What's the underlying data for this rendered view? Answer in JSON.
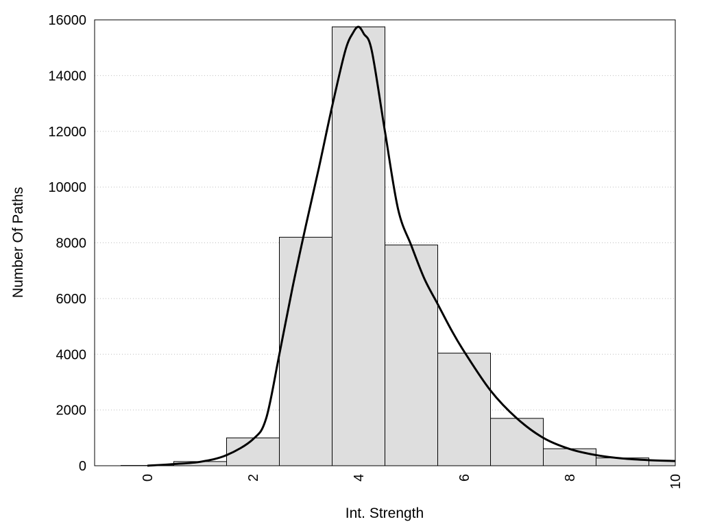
{
  "chart_data": {
    "type": "bar",
    "title": "",
    "xlabel": "Int. Strength",
    "ylabel": "Number Of Paths",
    "xlim": [
      -1,
      10
    ],
    "ylim": [
      0,
      16000
    ],
    "x_ticks": [
      "0",
      "2",
      "4",
      "6",
      "8",
      "10"
    ],
    "y_ticks": [
      "0",
      "2000",
      "4000",
      "6000",
      "8000",
      "10000",
      "12000",
      "14000",
      "16000"
    ],
    "grid": "horizontal dotted",
    "legend": "none",
    "bar_fill": "#dedede",
    "bar_edge": "#000000",
    "series": [
      {
        "type": "bar",
        "bin_width": 1,
        "x": [
          0,
          1,
          2,
          3,
          4,
          5,
          6,
          7,
          8,
          9,
          10
        ],
        "values": [
          10,
          150,
          1000,
          8200,
          15750,
          7920,
          4040,
          1700,
          610,
          280,
          180
        ]
      },
      {
        "type": "line",
        "color": "#000000",
        "x": [
          0,
          0.5,
          1,
          1.5,
          2,
          2.25,
          2.5,
          2.75,
          3,
          3.25,
          3.5,
          3.75,
          3.9,
          4.0,
          4.1,
          4.25,
          4.5,
          4.75,
          5.0,
          5.25,
          5.5,
          5.75,
          6.0,
          6.5,
          7,
          7.5,
          8,
          8.5,
          9,
          9.5,
          10
        ],
        "values": [
          0,
          60,
          140,
          380,
          950,
          1700,
          4000,
          6400,
          8600,
          10700,
          12900,
          14900,
          15550,
          15750,
          15500,
          14900,
          12000,
          9200,
          7900,
          6700,
          5800,
          4900,
          4100,
          2700,
          1700,
          1000,
          600,
          380,
          260,
          200,
          170
        ]
      }
    ]
  }
}
